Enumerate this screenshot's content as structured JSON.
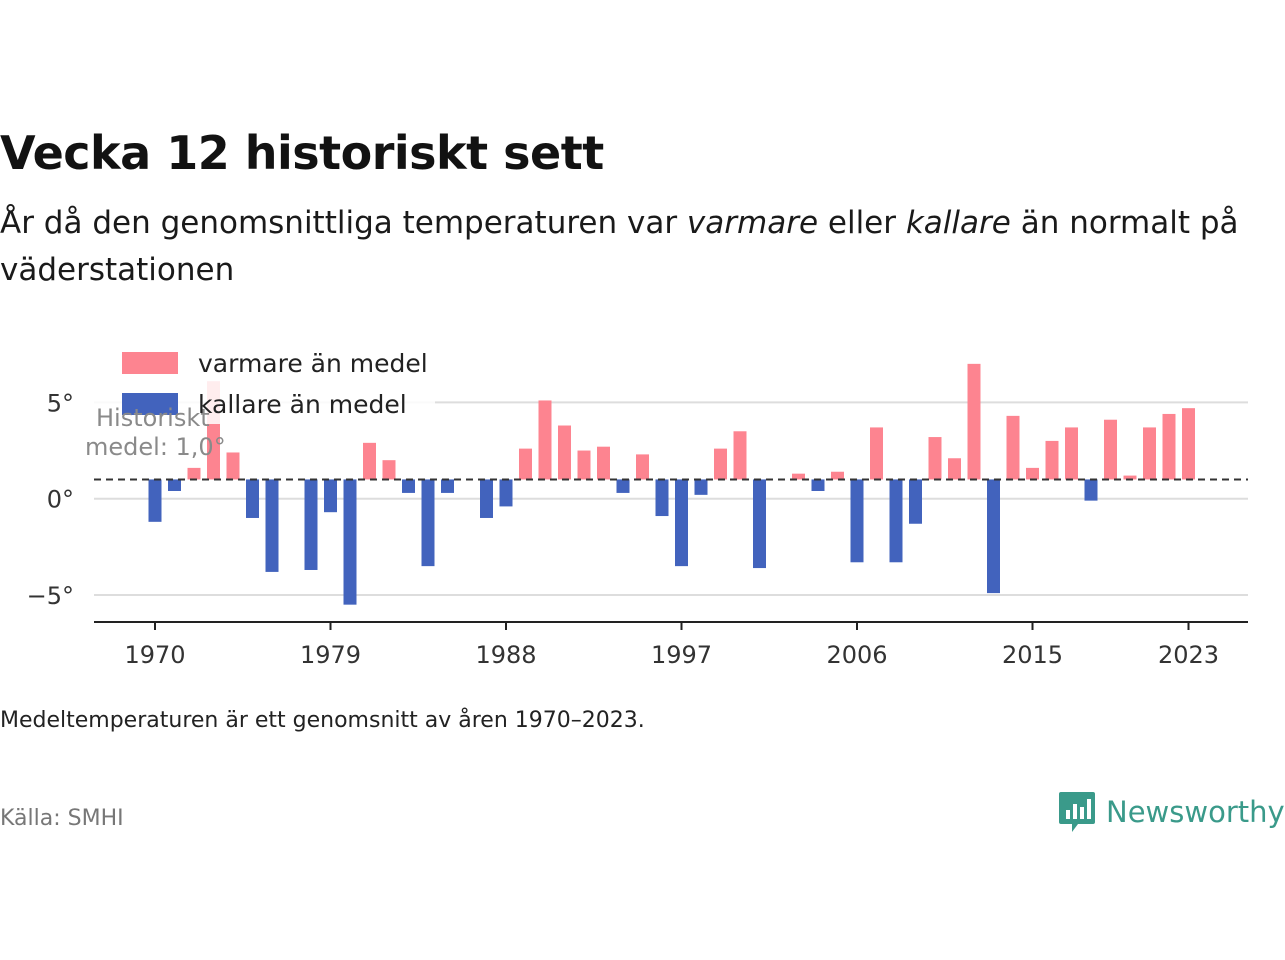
{
  "title": "Vecka 12 historiskt sett",
  "subtitle": {
    "part1": "År då den genomsnittliga temperaturen var ",
    "warm_word": "varmare",
    "part2": " eller ",
    "cold_word": "kallare",
    "part3": " än normalt på väderstationen"
  },
  "note": "Medeltemperaturen är ett genomsnitt av åren 1970–2023.",
  "source": "Källa: SMHI",
  "logo_text": "Newsworthy",
  "colors": {
    "warm": "#fd8490",
    "cold": "#4263bd",
    "grid": "#dddddd",
    "mean_line": "#333333",
    "brand": "#3a9a8a"
  },
  "chart_data": {
    "type": "bar",
    "legend": {
      "warm_label": "varmare än medel",
      "cold_label": "kallare än medel",
      "position": "top-left"
    },
    "mean_label_line1": "Historiskt",
    "mean_label_line2": "medel: 1,0°",
    "mean": 1.0,
    "ylim": [
      -6.4,
      7.2
    ],
    "yticks": [
      -5,
      0,
      5
    ],
    "ytick_labels": [
      "−5°",
      "0°",
      "5°"
    ],
    "xticks": [
      1970,
      1979,
      1988,
      1997,
      2006,
      2015,
      2023
    ],
    "x": [
      1970,
      1971,
      1972,
      1973,
      1974,
      1975,
      1976,
      1977,
      1978,
      1979,
      1980,
      1981,
      1982,
      1983,
      1984,
      1985,
      1986,
      1987,
      1988,
      1989,
      1990,
      1991,
      1992,
      1993,
      1994,
      1995,
      1996,
      1997,
      1998,
      1999,
      2000,
      2001,
      2002,
      2003,
      2004,
      2005,
      2006,
      2007,
      2008,
      2009,
      2010,
      2011,
      2012,
      2013,
      2014,
      2015,
      2016,
      2017,
      2018,
      2019,
      2020,
      2021,
      2022,
      2023
    ],
    "values": [
      -1.2,
      0.4,
      1.6,
      6.1,
      2.4,
      -1.0,
      -3.8,
      null,
      -3.7,
      -0.7,
      -5.5,
      2.9,
      2.0,
      0.3,
      -3.5,
      0.3,
      null,
      -1.0,
      -0.4,
      2.6,
      5.1,
      3.8,
      2.5,
      2.7,
      0.3,
      2.3,
      -0.9,
      -3.5,
      0.2,
      2.6,
      3.5,
      -3.6,
      null,
      1.3,
      0.4,
      1.4,
      -3.3,
      3.7,
      -3.3,
      -1.3,
      3.2,
      2.1,
      7.0,
      -4.9,
      4.3,
      1.6,
      3.0,
      3.7,
      -0.1,
      4.1,
      1.2,
      3.7,
      4.4,
      4.7
    ]
  }
}
